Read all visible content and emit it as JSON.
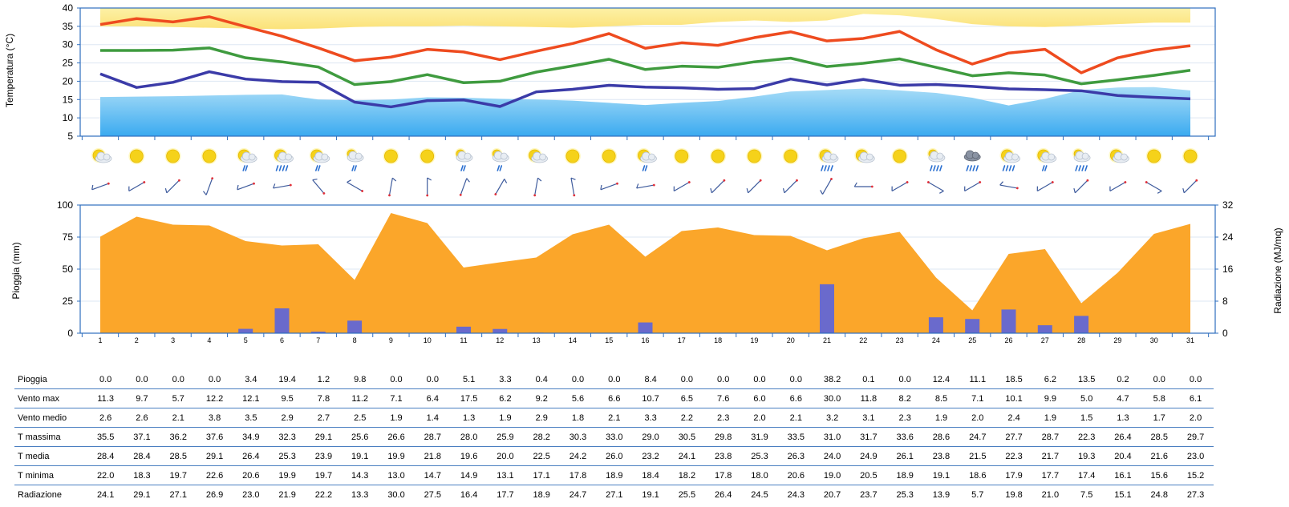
{
  "days": [
    1,
    2,
    3,
    4,
    5,
    6,
    7,
    8,
    9,
    10,
    11,
    12,
    13,
    14,
    15,
    16,
    17,
    18,
    19,
    20,
    21,
    22,
    23,
    24,
    25,
    26,
    27,
    28,
    29,
    30,
    31
  ],
  "colors": {
    "t_max": "#ee4b1f",
    "t_mean": "#3f9b3f",
    "t_min": "#3b3ba8",
    "clim_max_band": "#fbe98a",
    "clim_min_band": "#5ab9ef",
    "radiation_area": "#fba62a",
    "rain_bar": "#6a6acc",
    "axis": "#2f6fbf"
  },
  "chart_data": [
    {
      "type": "line",
      "ylabel": "Temperatura (°C)",
      "ylim": [
        5,
        40
      ],
      "yticks": [
        5,
        10,
        15,
        20,
        25,
        30,
        35,
        40
      ],
      "x": [
        1,
        2,
        3,
        4,
        5,
        6,
        7,
        8,
        9,
        10,
        11,
        12,
        13,
        14,
        15,
        16,
        17,
        18,
        19,
        20,
        21,
        22,
        23,
        24,
        25,
        26,
        27,
        28,
        29,
        30,
        31
      ],
      "series": [
        {
          "key": "t_max",
          "values": [
            35.5,
            37.1,
            36.2,
            37.6,
            34.9,
            32.3,
            29.1,
            25.6,
            26.6,
            28.7,
            28.0,
            25.9,
            28.2,
            30.3,
            33.0,
            29.0,
            30.5,
            29.8,
            31.9,
            33.5,
            31.0,
            31.7,
            33.6,
            28.6,
            24.7,
            27.7,
            28.7,
            22.3,
            26.4,
            28.5,
            29.7
          ]
        },
        {
          "key": "t_mean",
          "values": [
            28.4,
            28.4,
            28.5,
            29.1,
            26.4,
            25.3,
            23.9,
            19.1,
            19.9,
            21.8,
            19.6,
            20.0,
            22.5,
            24.2,
            26.0,
            23.2,
            24.1,
            23.8,
            25.3,
            26.3,
            24.0,
            24.9,
            26.1,
            23.8,
            21.5,
            22.3,
            21.7,
            19.3,
            20.4,
            21.6,
            23.0
          ]
        },
        {
          "key": "t_min",
          "values": [
            22.0,
            18.3,
            19.7,
            22.6,
            20.6,
            19.9,
            19.7,
            14.3,
            13.0,
            14.7,
            14.9,
            13.1,
            17.1,
            17.8,
            18.9,
            18.4,
            18.2,
            17.8,
            18.0,
            20.6,
            19.0,
            20.5,
            18.9,
            19.1,
            18.6,
            17.9,
            17.7,
            17.4,
            16.1,
            15.6,
            15.2
          ]
        }
      ],
      "climate_bands": {
        "max_band_lower": [
          35,
          35,
          34.8,
          34.6,
          34.4,
          34.2,
          34.4,
          34.8,
          35,
          35,
          35.2,
          35,
          34.8,
          34.6,
          35,
          35.4,
          35.4,
          36.2,
          36.6,
          36.2,
          36.6,
          38.4,
          38,
          37,
          35.6,
          35,
          34.8,
          35.2,
          35.6,
          36,
          36
        ],
        "min_band_upper": [
          15.7,
          15.8,
          15.9,
          16.1,
          16.3,
          16.4,
          15,
          14.8,
          15,
          15.6,
          15.5,
          15.2,
          15,
          14.7,
          14.1,
          13.5,
          14.1,
          14.6,
          15.8,
          17.2,
          17.6,
          18,
          17.5,
          16.8,
          15.5,
          13.4,
          15.2,
          17.6,
          18.3,
          18.4,
          17.5
        ]
      },
      "grid": true
    },
    {
      "type": "bar+area",
      "ylabel": "Pioggia (mm)",
      "y2label": "Radiazione (MJ/mq)",
      "ylim": [
        0,
        100
      ],
      "yticks": [
        0,
        25,
        50,
        75,
        100
      ],
      "y2lim": [
        0,
        32
      ],
      "y2ticks": [
        0,
        8,
        16,
        24,
        32
      ],
      "x": [
        1,
        2,
        3,
        4,
        5,
        6,
        7,
        8,
        9,
        10,
        11,
        12,
        13,
        14,
        15,
        16,
        17,
        18,
        19,
        20,
        21,
        22,
        23,
        24,
        25,
        26,
        27,
        28,
        29,
        30,
        31
      ],
      "rain": [
        0.0,
        0.0,
        0.0,
        0.0,
        3.4,
        19.4,
        1.2,
        9.8,
        0.0,
        0.0,
        5.1,
        3.3,
        0.4,
        0.0,
        0.0,
        8.4,
        0.0,
        0.0,
        0.0,
        0.0,
        38.2,
        0.1,
        0.0,
        12.4,
        11.1,
        18.5,
        6.2,
        13.5,
        0.2,
        0.0,
        0.0
      ],
      "radiation": [
        24.1,
        29.1,
        27.1,
        26.9,
        23.0,
        21.9,
        22.2,
        13.3,
        30.0,
        27.5,
        16.4,
        17.7,
        18.9,
        24.7,
        27.1,
        19.1,
        25.5,
        26.4,
        24.5,
        24.3,
        20.7,
        23.7,
        25.3,
        13.9,
        5.7,
        19.8,
        21.0,
        7.5,
        15.1,
        24.8,
        27.3
      ]
    }
  ],
  "weather_icons": [
    "sun-cloud",
    "sun",
    "sun",
    "sun",
    "sun-cloud-rain",
    "sun-cloud-heavy-rain",
    "sun-cloud-rain",
    "cloud-rain",
    "sun",
    "sun",
    "cloud-rain",
    "cloud-rain",
    "sun-cloud",
    "sun",
    "sun",
    "sun-cloud-rain",
    "sun",
    "sun",
    "sun",
    "sun",
    "sun-cloud-heavy-rain",
    "sun-cloud",
    "sun",
    "cloud-heavy-rain",
    "dark-cloud-heavy-rain",
    "sun-cloud-heavy-rain",
    "sun-cloud-rain",
    "cloud-heavy-rain",
    "sun-cloud",
    "sun",
    "sun"
  ],
  "wind_direction_deg": [
    250,
    240,
    225,
    200,
    250,
    260,
    320,
    300,
    10,
    0,
    20,
    30,
    10,
    350,
    250,
    260,
    240,
    225,
    225,
    225,
    210,
    270,
    240,
    120,
    240,
    280,
    240,
    225,
    240,
    120,
    225
  ],
  "table": {
    "rows": [
      {
        "label": "Pioggia",
        "values": [
          "0.0",
          "0.0",
          "0.0",
          "0.0",
          "3.4",
          "19.4",
          "1.2",
          "9.8",
          "0.0",
          "0.0",
          "5.1",
          "3.3",
          "0.4",
          "0.0",
          "0.0",
          "8.4",
          "0.0",
          "0.0",
          "0.0",
          "0.0",
          "38.2",
          "0.1",
          "0.0",
          "12.4",
          "11.1",
          "18.5",
          "6.2",
          "13.5",
          "0.2",
          "0.0",
          "0.0"
        ]
      },
      {
        "label": "Vento max",
        "values": [
          "11.3",
          "9.7",
          "5.7",
          "12.2",
          "12.1",
          "9.5",
          "7.8",
          "11.2",
          "7.1",
          "6.4",
          "17.5",
          "6.2",
          "9.2",
          "5.6",
          "6.6",
          "10.7",
          "6.5",
          "7.6",
          "6.0",
          "6.6",
          "30.0",
          "11.8",
          "8.2",
          "8.5",
          "7.1",
          "10.1",
          "9.9",
          "5.0",
          "4.7",
          "5.8",
          "6.1"
        ]
      },
      {
        "label": "Vento medio",
        "values": [
          "2.6",
          "2.6",
          "2.1",
          "3.8",
          "3.5",
          "2.9",
          "2.7",
          "2.5",
          "1.9",
          "1.4",
          "1.3",
          "1.9",
          "2.9",
          "1.8",
          "2.1",
          "3.3",
          "2.2",
          "2.3",
          "2.0",
          "2.1",
          "3.2",
          "3.1",
          "2.3",
          "1.9",
          "2.0",
          "2.4",
          "1.9",
          "1.5",
          "1.3",
          "1.7",
          "2.0"
        ]
      },
      {
        "label": "T massima",
        "values": [
          "35.5",
          "37.1",
          "36.2",
          "37.6",
          "34.9",
          "32.3",
          "29.1",
          "25.6",
          "26.6",
          "28.7",
          "28.0",
          "25.9",
          "28.2",
          "30.3",
          "33.0",
          "29.0",
          "30.5",
          "29.8",
          "31.9",
          "33.5",
          "31.0",
          "31.7",
          "33.6",
          "28.6",
          "24.7",
          "27.7",
          "28.7",
          "22.3",
          "26.4",
          "28.5",
          "29.7"
        ]
      },
      {
        "label": "T media",
        "values": [
          "28.4",
          "28.4",
          "28.5",
          "29.1",
          "26.4",
          "25.3",
          "23.9",
          "19.1",
          "19.9",
          "21.8",
          "19.6",
          "20.0",
          "22.5",
          "24.2",
          "26.0",
          "23.2",
          "24.1",
          "23.8",
          "25.3",
          "26.3",
          "24.0",
          "24.9",
          "26.1",
          "23.8",
          "21.5",
          "22.3",
          "21.7",
          "19.3",
          "20.4",
          "21.6",
          "23.0"
        ]
      },
      {
        "label": "T minima",
        "values": [
          "22.0",
          "18.3",
          "19.7",
          "22.6",
          "20.6",
          "19.9",
          "19.7",
          "14.3",
          "13.0",
          "14.7",
          "14.9",
          "13.1",
          "17.1",
          "17.8",
          "18.9",
          "18.4",
          "18.2",
          "17.8",
          "18.0",
          "20.6",
          "19.0",
          "20.5",
          "18.9",
          "19.1",
          "18.6",
          "17.9",
          "17.7",
          "17.4",
          "16.1",
          "15.6",
          "15.2"
        ]
      },
      {
        "label": "Radiazione",
        "values": [
          "24.1",
          "29.1",
          "27.1",
          "26.9",
          "23.0",
          "21.9",
          "22.2",
          "13.3",
          "30.0",
          "27.5",
          "16.4",
          "17.7",
          "18.9",
          "24.7",
          "27.1",
          "19.1",
          "25.5",
          "26.4",
          "24.5",
          "24.3",
          "20.7",
          "23.7",
          "25.3",
          "13.9",
          "5.7",
          "19.8",
          "21.0",
          "7.5",
          "15.1",
          "24.8",
          "27.3"
        ]
      }
    ]
  }
}
